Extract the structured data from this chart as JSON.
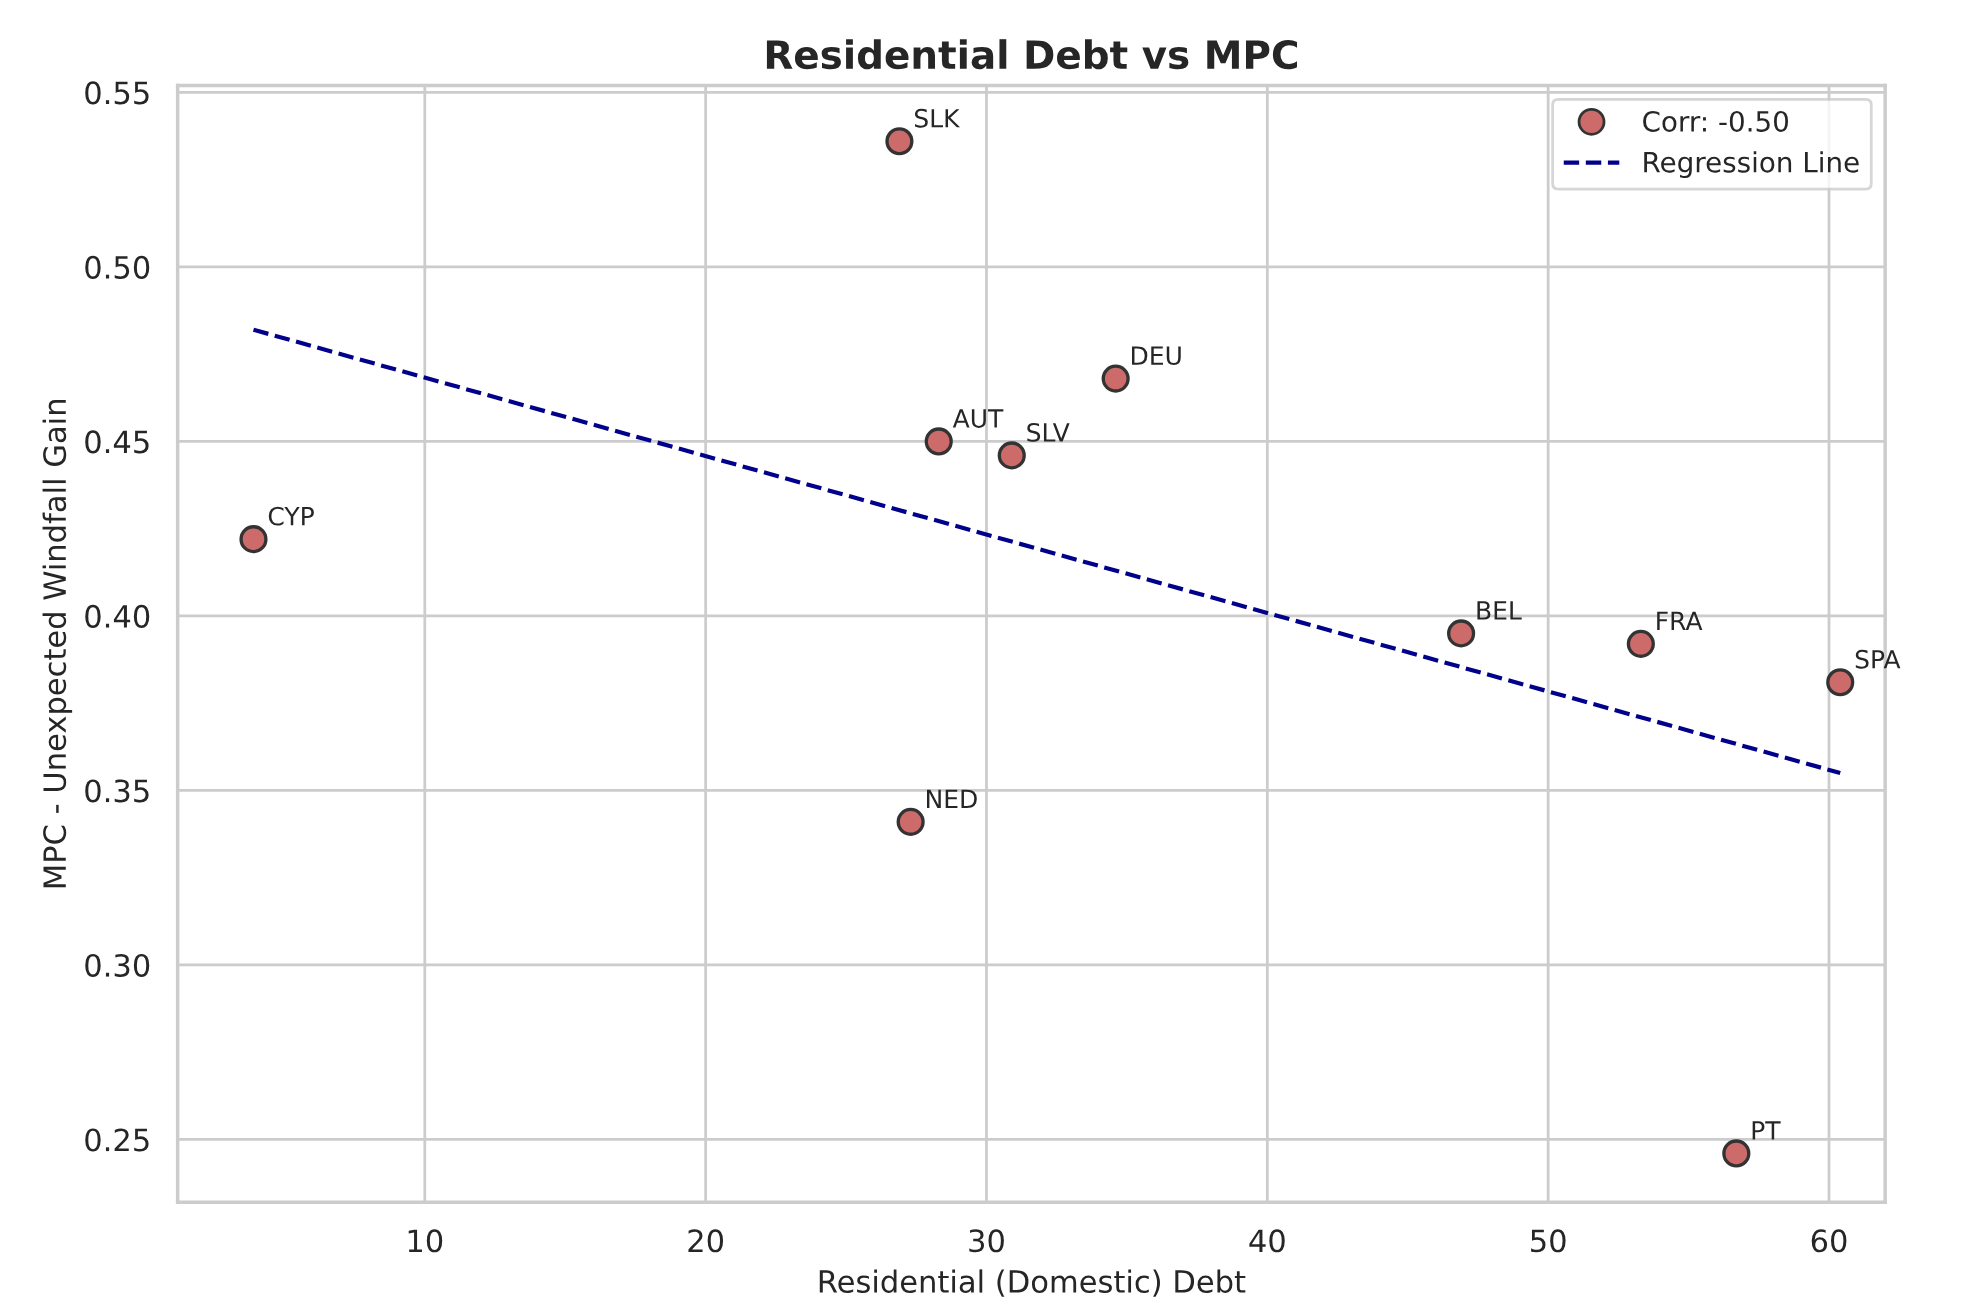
{
  "chart_data": {
    "type": "scatter",
    "title": "Residential Debt vs MPC",
    "xlabel": "Residential (Domestic) Debt",
    "ylabel": "MPC - Unexpected Windfall Gain",
    "series": [
      {
        "name": "Corr: -0.50",
        "color": "#cd6b6b",
        "marker": "circle",
        "x": [
          3.9,
          26.9,
          28.3,
          30.9,
          34.6,
          27.3,
          46.9,
          53.3,
          60.4,
          56.7
        ],
        "values": [
          0.422,
          0.536,
          0.45,
          0.446,
          0.468,
          0.341,
          0.395,
          0.392,
          0.381,
          0.246
        ]
      },
      {
        "name": "Regression Line",
        "type": "line",
        "color": "#00008b",
        "line_style": "dashed",
        "marker": "none",
        "x": [
          3.9,
          60.4
        ],
        "values": [
          0.482,
          0.355
        ]
      }
    ],
    "annotations": [
      {
        "text": "CYP",
        "x": 3.9,
        "y": 0.422
      },
      {
        "text": "SLK",
        "x": 26.9,
        "y": 0.536
      },
      {
        "text": "AUT",
        "x": 28.3,
        "y": 0.45
      },
      {
        "text": "SLV",
        "x": 30.9,
        "y": 0.446
      },
      {
        "text": "DEU",
        "x": 34.6,
        "y": 0.468
      },
      {
        "text": "NED",
        "x": 27.3,
        "y": 0.341
      },
      {
        "text": "BEL",
        "x": 46.9,
        "y": 0.395
      },
      {
        "text": "FRA",
        "x": 53.3,
        "y": 0.392
      },
      {
        "text": "SPA",
        "x": 60.4,
        "y": 0.381
      },
      {
        "text": "PT",
        "x": 56.7,
        "y": 0.246
      }
    ],
    "xlim": [
      1.2,
      62
    ],
    "ylim": [
      0.232,
      0.552
    ],
    "xticks": [
      10,
      20,
      30,
      40,
      50,
      60
    ],
    "yticks": [
      0.25,
      {
        "value": 0.3,
        "label": "0.30"
      },
      0.35,
      {
        "value": 0.4,
        "label": "0.40"
      },
      0.45,
      {
        "value": 0.5,
        "label": "0.50"
      },
      0.55
    ],
    "grid": true,
    "legend": "top right"
  }
}
